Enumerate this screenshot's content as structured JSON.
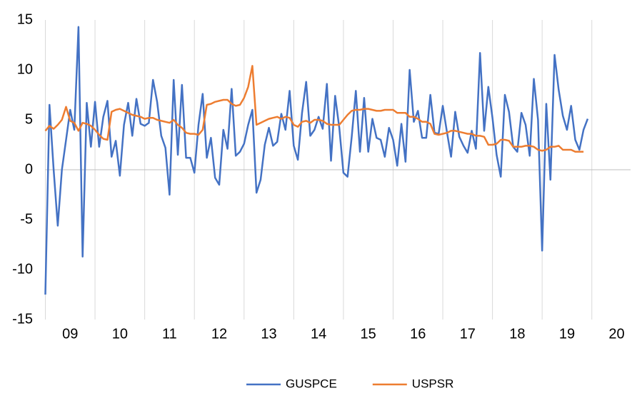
{
  "chart_data": {
    "type": "line",
    "x": [
      2009,
      2009.083,
      2009.167,
      2009.25,
      2009.333,
      2009.417,
      2009.5,
      2009.583,
      2009.667,
      2009.75,
      2009.833,
      2009.917,
      2010,
      2010.083,
      2010.167,
      2010.25,
      2010.333,
      2010.417,
      2010.5,
      2010.583,
      2010.667,
      2010.75,
      2010.833,
      2010.917,
      2011,
      2011.083,
      2011.167,
      2011.25,
      2011.333,
      2011.417,
      2011.5,
      2011.583,
      2011.667,
      2011.75,
      2011.833,
      2011.917,
      2012,
      2012.083,
      2012.167,
      2012.25,
      2012.333,
      2012.417,
      2012.5,
      2012.583,
      2012.667,
      2012.75,
      2012.833,
      2012.917,
      2013,
      2013.083,
      2013.167,
      2013.25,
      2013.333,
      2013.417,
      2013.5,
      2013.583,
      2013.667,
      2013.75,
      2013.833,
      2013.917,
      2014,
      2014.083,
      2014.167,
      2014.25,
      2014.333,
      2014.417,
      2014.5,
      2014.583,
      2014.667,
      2014.75,
      2014.833,
      2014.917,
      2015,
      2015.083,
      2015.167,
      2015.25,
      2015.333,
      2015.417,
      2015.5,
      2015.583,
      2015.667,
      2015.75,
      2015.833,
      2015.917,
      2016,
      2016.083,
      2016.167,
      2016.25,
      2016.333,
      2016.417,
      2016.5,
      2016.583,
      2016.667,
      2016.75,
      2016.833,
      2016.917,
      2017,
      2017.083,
      2017.167,
      2017.25,
      2017.333,
      2017.417,
      2017.5,
      2017.583,
      2017.667,
      2017.75,
      2017.833,
      2017.917,
      2018,
      2018.083,
      2018.167,
      2018.25,
      2018.333,
      2018.417,
      2018.5,
      2018.583,
      2018.667,
      2018.75,
      2018.833,
      2018.917,
      2019,
      2019.083,
      2019.167,
      2019.25,
      2019.333,
      2019.417,
      2019.5,
      2019.583,
      2019.667,
      2019.75,
      2019.833,
      2019.917
    ],
    "series": [
      {
        "name": "GUSPCE",
        "color": "#4472c4",
        "values": [
          -12.5,
          6.5,
          0,
          -5.6,
          0,
          3,
          6,
          4,
          14.3,
          -8.7,
          6.7,
          2.3,
          6.8,
          2.3,
          5.3,
          6.9,
          1.3,
          2.9,
          -0.6,
          4.5,
          6.7,
          3.4,
          7.1,
          4.6,
          4.4,
          4.7,
          9.0,
          6.8,
          3.4,
          2.2,
          -2.5,
          9.0,
          1.5,
          8.5,
          1.2,
          1.2,
          -0.3,
          4.5,
          7.6,
          1.2,
          3.2,
          -0.8,
          -1.5,
          4.0,
          2.1,
          8.1,
          1.4,
          1.8,
          2.6,
          4.5,
          6.0,
          -2.3,
          -1.0,
          2.5,
          4.2,
          2.4,
          2.8,
          5.6,
          4.0,
          7.9,
          2.4,
          1.0,
          5.7,
          8.8,
          3.4,
          4.0,
          5.3,
          4.1,
          8.6,
          0.9,
          7.4,
          4.2,
          -0.3,
          -0.7,
          3.3,
          7.9,
          1.8,
          7.2,
          1.8,
          5.1,
          3.2,
          3.0,
          1.3,
          4.2,
          3.0,
          0.4,
          4.6,
          0.8,
          10.0,
          4.8,
          5.9,
          3.2,
          3.2,
          7.5,
          3.7,
          3.6,
          6.4,
          3.8,
          1.3,
          5.8,
          3.3,
          2.4,
          1.7,
          3.9,
          2.1,
          11.7,
          3.9,
          8.3,
          5.2,
          1.5,
          -0.7,
          7.5,
          5.8,
          2.3,
          1.8,
          5.7,
          4.5,
          1.4,
          9.1,
          5.0,
          -8.1,
          6.6,
          -1.0,
          11.5,
          8.0,
          5.4,
          4.0,
          6.4,
          3.0,
          2.0,
          4.0,
          5.1
        ]
      },
      {
        "name": "USPSR",
        "color": "#ed7d31",
        "values": [
          3.9,
          4.4,
          4.1,
          4.5,
          5.0,
          6.3,
          4.9,
          4.7,
          3.9,
          4.7,
          4.6,
          4.4,
          4.0,
          3.5,
          3.1,
          3.0,
          5.8,
          6.0,
          6.1,
          5.9,
          5.7,
          5.5,
          5.4,
          5.3,
          5.1,
          5.2,
          5.2,
          5.0,
          4.9,
          4.8,
          4.7,
          5.0,
          4.5,
          4.2,
          3.7,
          3.6,
          3.6,
          3.5,
          4.0,
          6.5,
          6.6,
          6.8,
          6.9,
          7.0,
          7.0,
          6.6,
          6.4,
          6.5,
          7.2,
          8.3,
          10.4,
          4.5,
          4.7,
          4.9,
          5.1,
          5.2,
          5.3,
          5.1,
          5.3,
          5.2,
          4.5,
          4.3,
          4.8,
          4.9,
          4.7,
          5.0,
          5.0,
          4.9,
          4.6,
          4.5,
          4.5,
          4.5,
          5.0,
          5.5,
          5.9,
          6.0,
          6.0,
          6.1,
          6.1,
          6.0,
          5.9,
          5.9,
          6.0,
          6.0,
          6.0,
          5.7,
          5.7,
          5.7,
          5.3,
          5.3,
          5.1,
          4.8,
          4.8,
          4.6,
          3.6,
          3.5,
          3.6,
          3.7,
          3.9,
          3.9,
          3.8,
          3.7,
          3.6,
          3.6,
          3.4,
          3.4,
          3.3,
          2.5,
          2.5,
          2.6,
          3.0,
          3.0,
          2.9,
          2.3,
          2.3,
          2.3,
          2.4,
          2.4,
          2.3,
          2.0,
          1.9,
          2.0,
          2.3,
          2.3,
          2.4,
          2.0,
          2.0,
          2.0,
          1.8,
          1.8,
          1.8,
          null
        ]
      }
    ],
    "xlim": [
      2009,
      2020.78
    ],
    "xticks": [
      {
        "value": 2009,
        "label": "09"
      },
      {
        "value": 2010,
        "label": "10"
      },
      {
        "value": 2011,
        "label": "11"
      },
      {
        "value": 2012,
        "label": "12"
      },
      {
        "value": 2013,
        "label": "13"
      },
      {
        "value": 2014,
        "label": "14"
      },
      {
        "value": 2015,
        "label": "15"
      },
      {
        "value": 2016,
        "label": "16"
      },
      {
        "value": 2017,
        "label": "17"
      },
      {
        "value": 2018,
        "label": "18"
      },
      {
        "value": 2019,
        "label": "19"
      },
      {
        "value": 2020,
        "label": "20"
      }
    ],
    "ylim": [
      -15,
      15
    ],
    "yticks": [
      -15,
      -10,
      -5,
      0,
      5,
      10,
      15
    ],
    "grid": "x",
    "legend": "bottom"
  }
}
